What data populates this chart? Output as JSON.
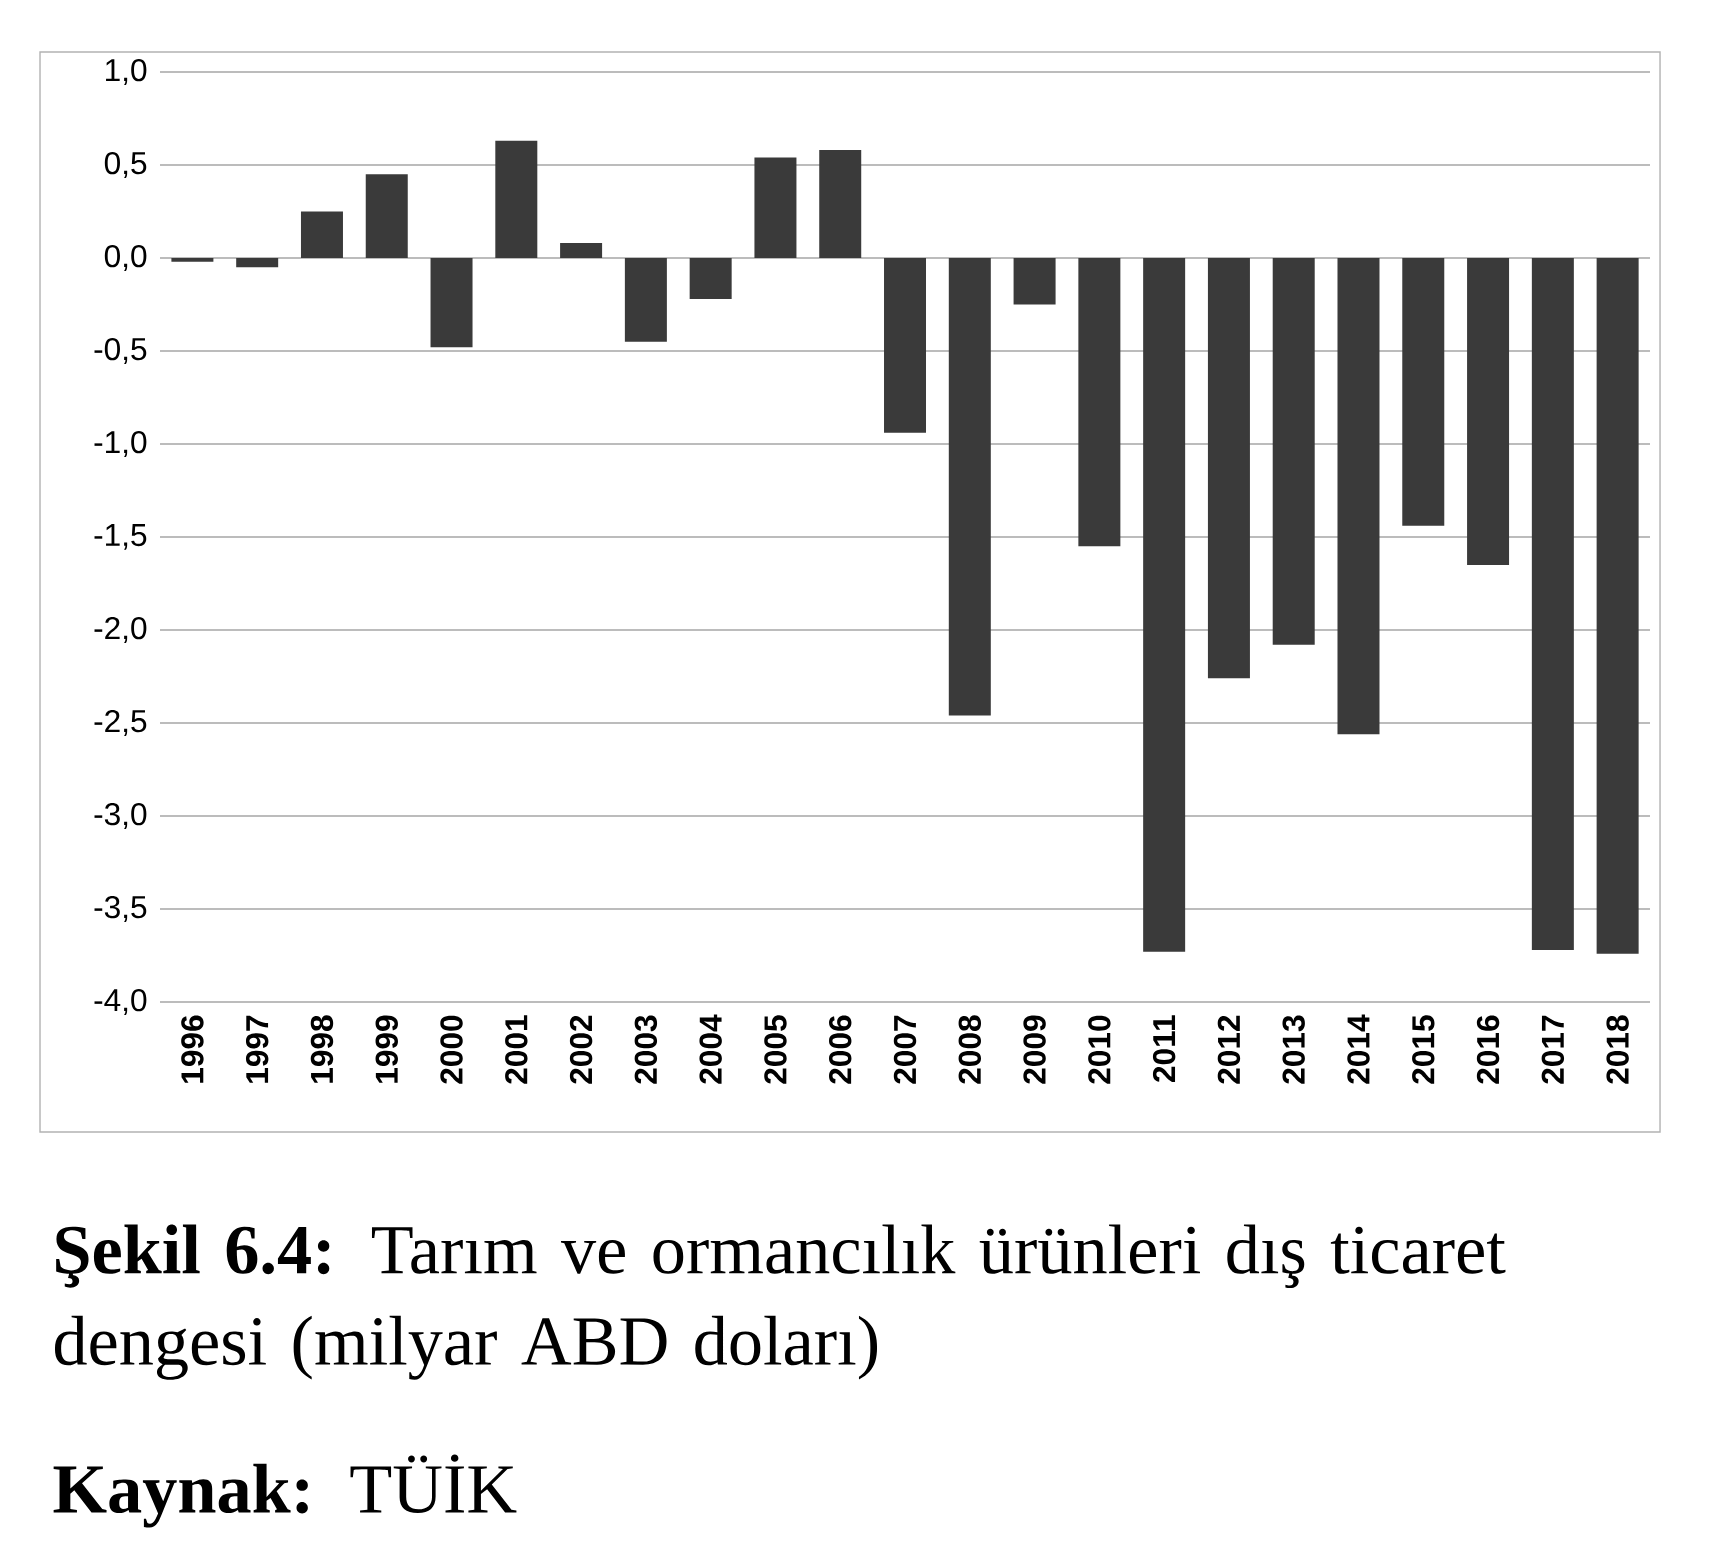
{
  "chart_data": {
    "type": "bar",
    "categories": [
      "1996",
      "1997",
      "1998",
      "1999",
      "2000",
      "2001",
      "2002",
      "2003",
      "2004",
      "2005",
      "2006",
      "2007",
      "2008",
      "2009",
      "2010",
      "2011",
      "2012",
      "2013",
      "2014",
      "2015",
      "2016",
      "2017",
      "2018"
    ],
    "values": [
      -0.02,
      -0.05,
      0.25,
      0.45,
      -0.48,
      0.63,
      0.08,
      -0.45,
      -0.22,
      0.54,
      0.58,
      -0.94,
      -2.46,
      -0.25,
      -1.55,
      -3.73,
      -2.26,
      -2.08,
      -2.56,
      -1.44,
      -1.65,
      -3.72,
      -3.74
    ],
    "color": "#3a3a3a",
    "ylim": [
      -4.0,
      1.0
    ],
    "yticks": [
      {
        "value": -4.0,
        "label": "-4,0"
      },
      {
        "value": -3.5,
        "label": "-3,5"
      },
      {
        "value": -3.0,
        "label": "-3,0"
      },
      {
        "value": -2.5,
        "label": "-2,5"
      },
      {
        "value": -2.0,
        "label": "-2,0"
      },
      {
        "value": -1.5,
        "label": "-1,5"
      },
      {
        "value": -1.0,
        "label": "-1,0"
      },
      {
        "value": -0.5,
        "label": "-0,5"
      },
      {
        "value": 0.0,
        "label": "0,0"
      },
      {
        "value": 0.5,
        "label": "0,5"
      },
      {
        "value": 1.0,
        "label": "1,0"
      }
    ],
    "grid": "y",
    "annotations": [
      "**Şekil 6.4:** Tarım ve ormancılık ürünleri dış ticaret dengesi (milyar ABD doları)",
      "**Kaynak:** TÜİK"
    ]
  }
}
